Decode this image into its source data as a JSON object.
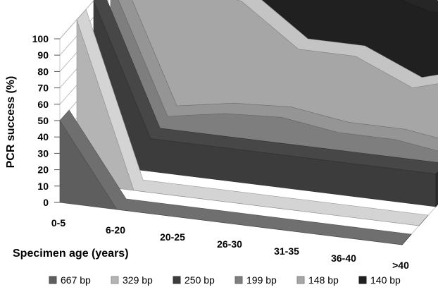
{
  "chart_data": {
    "type": "area",
    "categories": [
      "0-5",
      "6-20",
      "20-25",
      "26-30",
      "31-35",
      "36-40",
      ">40"
    ],
    "series": [
      {
        "name": "667 bp",
        "color": "#5e5e5e",
        "values": [
          50,
          0,
          0,
          0,
          0,
          0,
          0
        ]
      },
      {
        "name": "329 bp",
        "color": "#b4b4b4",
        "values": [
          100,
          0,
          0,
          0,
          0,
          0,
          0
        ]
      },
      {
        "name": "250 bp",
        "color": "#3c3c3c",
        "values": [
          100,
          20,
          20,
          20,
          20,
          20,
          20
        ]
      },
      {
        "name": "199 bp",
        "color": "#7e7e7e",
        "values": [
          100,
          22,
          28,
          30,
          25,
          25,
          20
        ]
      },
      {
        "name": "148 bp",
        "color": "#a6a6a6",
        "values": [
          100,
          90,
          85,
          60,
          60,
          45,
          55
        ]
      },
      {
        "name": "140 bp",
        "color": "#202020",
        "values": [
          100,
          100,
          80,
          85,
          90,
          80,
          80
        ]
      }
    ],
    "xlabel": "Specimen age (years)",
    "ylabel": "PCR success (%)",
    "yticks": [
      0,
      10,
      20,
      30,
      40,
      50,
      60,
      70,
      80,
      90,
      100
    ],
    "ylim": [
      0,
      100
    ],
    "grid": true,
    "legend_position": "bottom"
  }
}
